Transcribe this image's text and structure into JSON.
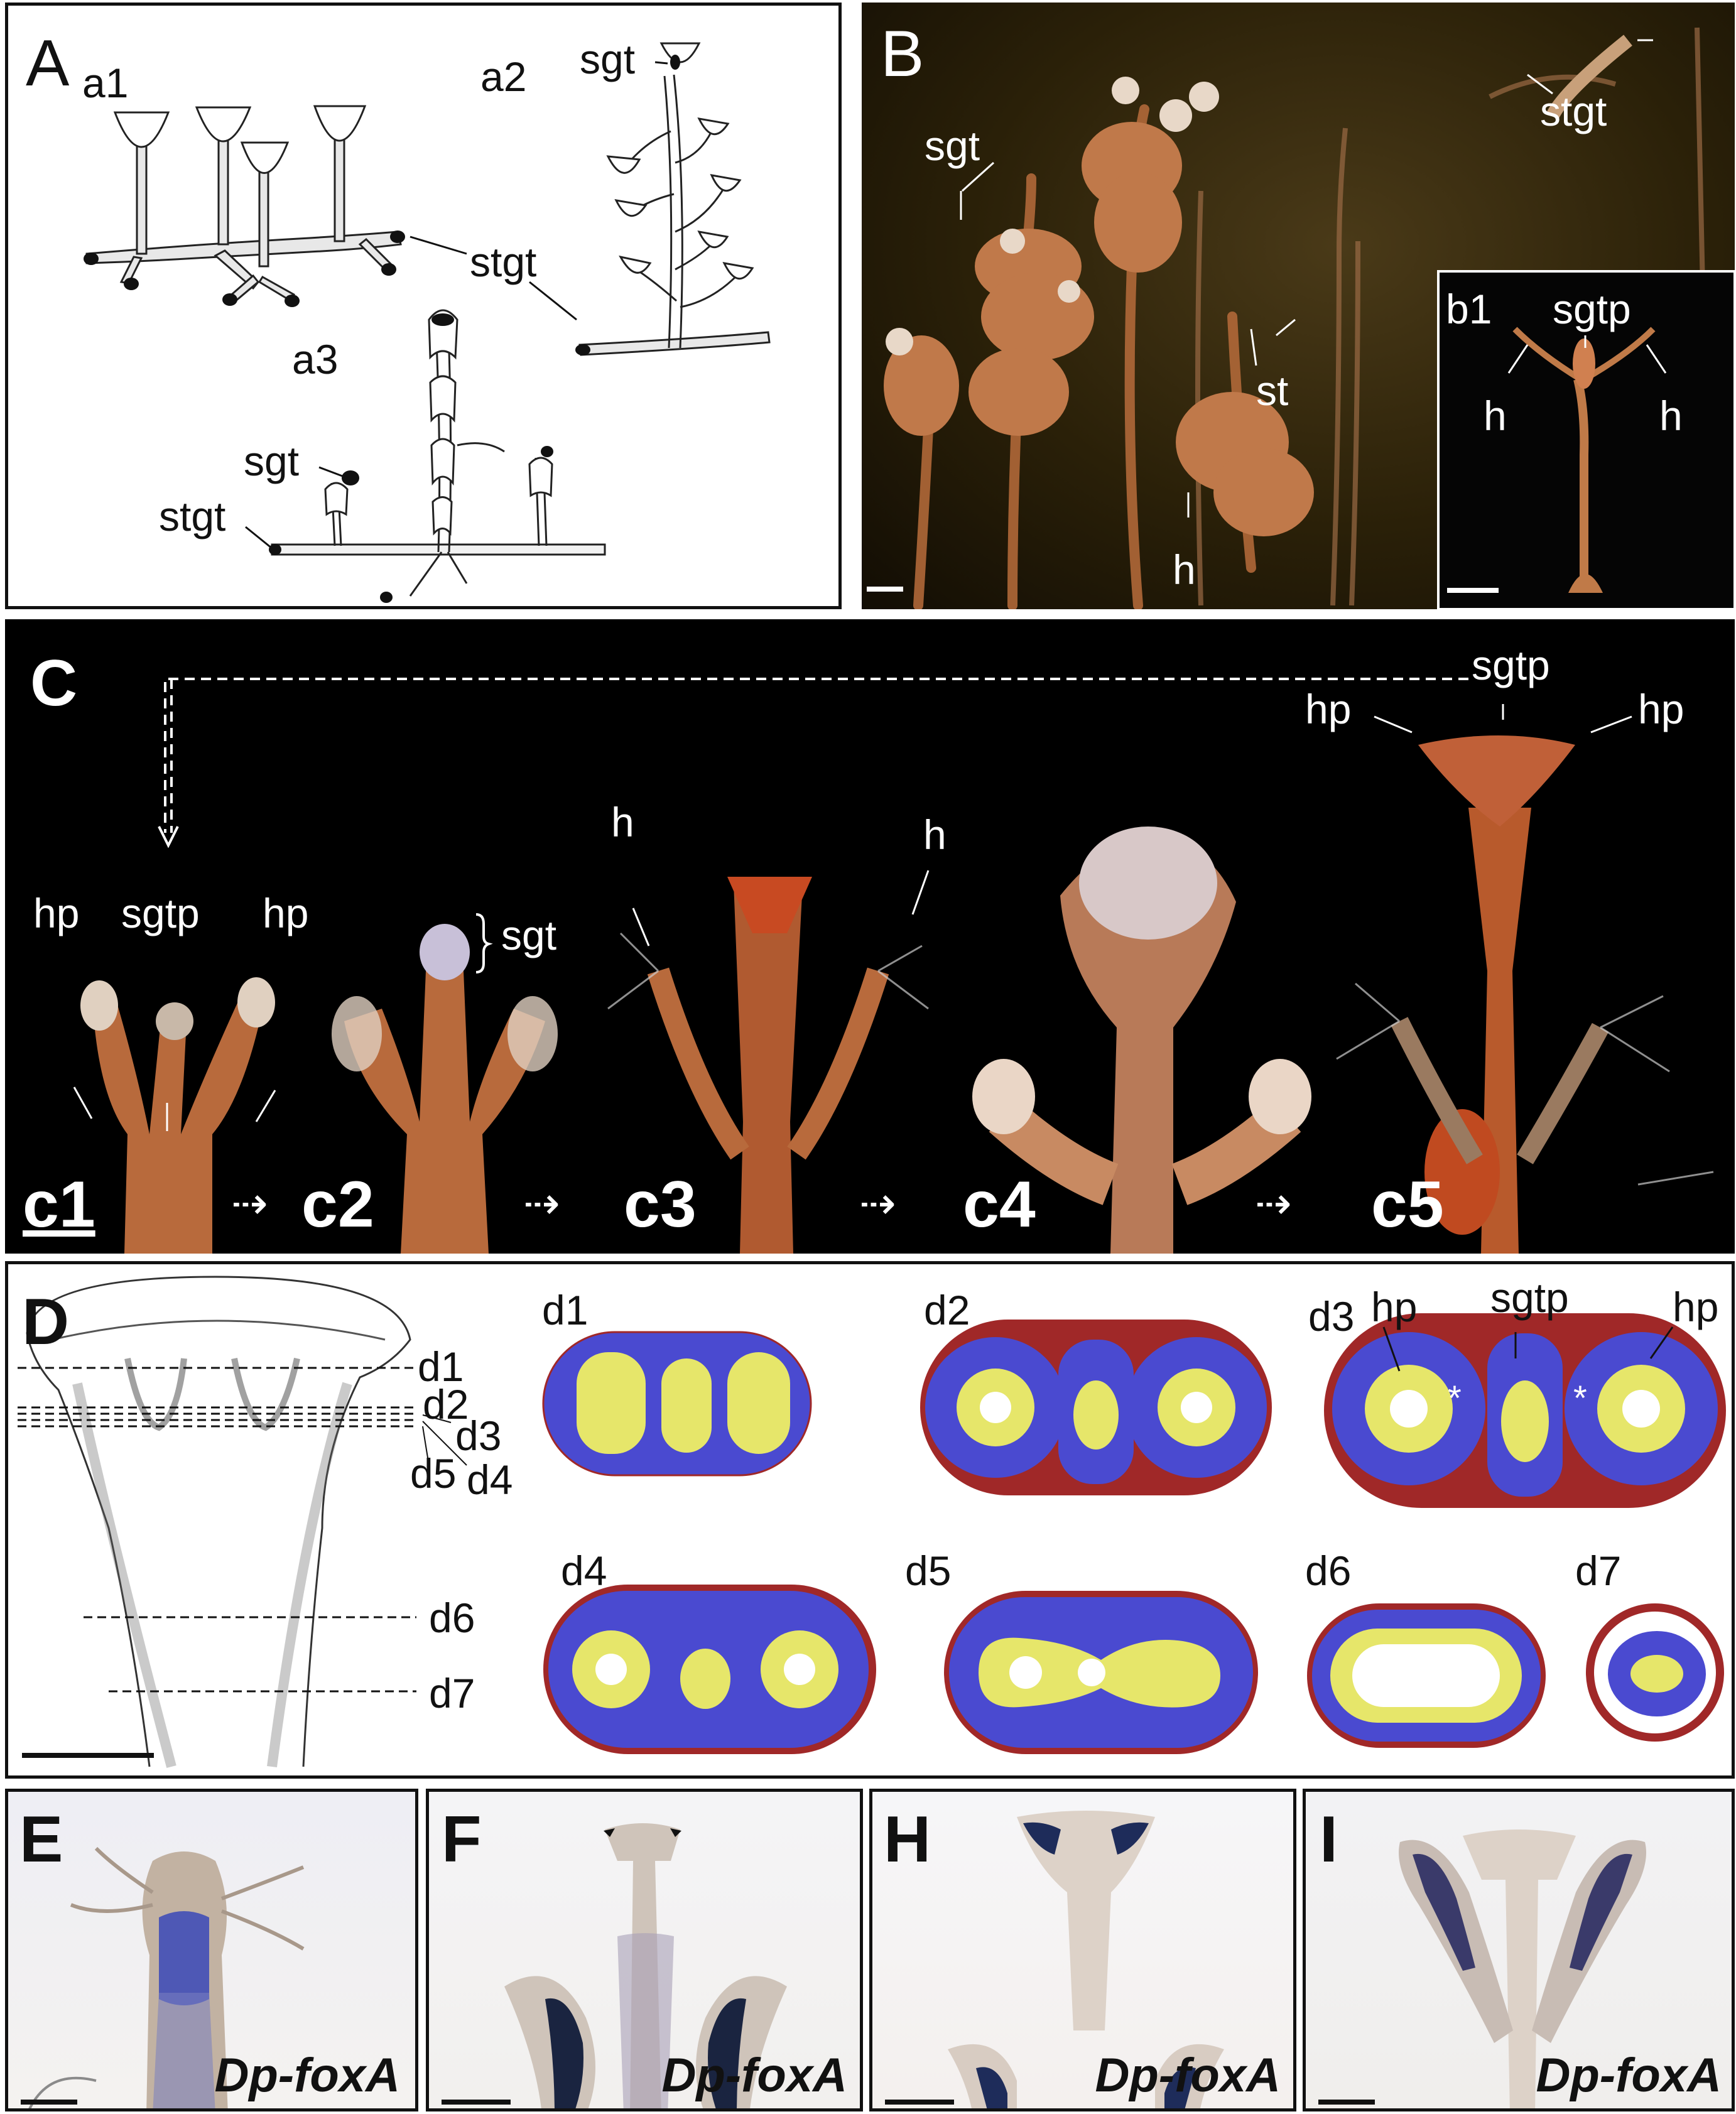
{
  "panelA": {
    "letter": "A",
    "sub_a1": "a1",
    "sub_a2": "a2",
    "sub_a3": "a3",
    "sgt_a2": "sgt",
    "stgt": "stgt",
    "sgt_a3": "sgt",
    "stgt_a3": "stgt"
  },
  "panelB": {
    "letter": "B",
    "sgt": "sgt",
    "stgt": "stgt",
    "st": "st",
    "h": "h",
    "inset": {
      "label": "b1",
      "sgtp": "sgtp",
      "h_left": "h",
      "h_right": "h"
    }
  },
  "panelC": {
    "letter": "C",
    "sgtp_top": "sgtp",
    "hp_top_left": "hp",
    "hp_top_right": "hp",
    "hp_c1_left": "hp",
    "sgtp_c1": "sgtp",
    "hp_c1_right": "hp",
    "sgt_c2": "sgt",
    "h_c3_left": "h",
    "h_c3_right": "h",
    "stages": [
      "c1",
      "c2",
      "c3",
      "c4",
      "c5"
    ],
    "arrow_glyph": "⇢"
  },
  "panelD": {
    "letter": "D",
    "cut_lines": [
      "d1",
      "d2",
      "d3",
      "d4",
      "d5",
      "d6",
      "d7"
    ],
    "sections": [
      {
        "label": "d1"
      },
      {
        "label": "d2"
      },
      {
        "label": "d3"
      },
      {
        "label": "d4"
      },
      {
        "label": "d5"
      },
      {
        "label": "d6"
      },
      {
        "label": "d7"
      }
    ],
    "d3_hp_left": "hp",
    "d3_sgtp": "sgtp",
    "d3_hp_right": "hp",
    "asterisk": "*",
    "colors": {
      "ectoderm": "#4a4ad0",
      "endoderm": "#e6e66a",
      "perisarc": "#a02828"
    }
  },
  "panelE": {
    "letter": "E",
    "gene": "Dp-foxA"
  },
  "panelF": {
    "letter": "F",
    "gene": "Dp-foxA"
  },
  "panelH": {
    "letter": "H",
    "gene": "Dp-foxA"
  },
  "panelI": {
    "letter": "I",
    "gene": "Dp-foxA"
  }
}
